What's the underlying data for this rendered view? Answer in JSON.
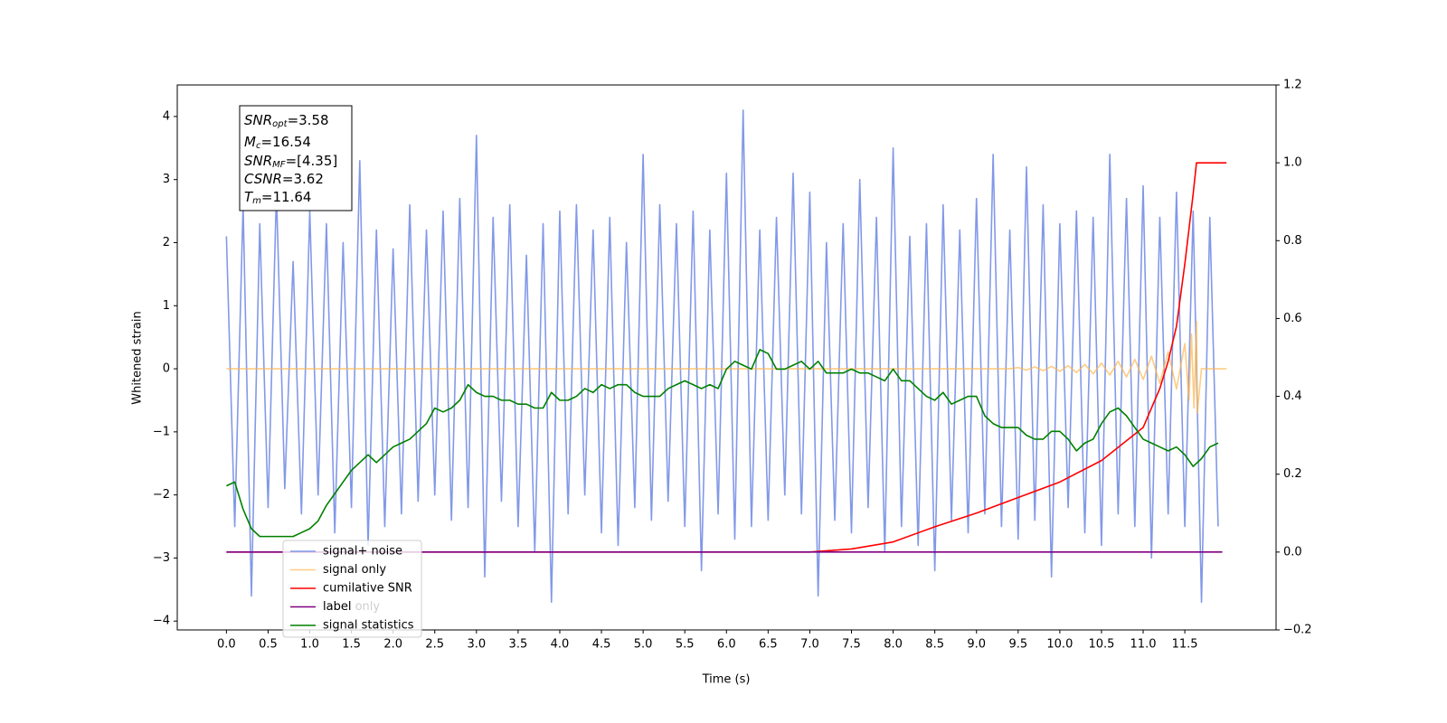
{
  "chart_data": {
    "type": "line",
    "xlabel": "Time (s)",
    "ylabel": "Whitened strain",
    "xlim": [
      -0.59,
      12.595
    ],
    "ylim": [
      -4.14,
      4.5
    ],
    "y2lim": [
      -0.2,
      1.2
    ],
    "xticks": [
      {
        "value": 0,
        "label": "0.0"
      },
      0.5,
      {
        "value": 1,
        "label": "1.0"
      },
      1.5,
      {
        "value": 2,
        "label": "2.0"
      },
      2.5,
      {
        "value": 3,
        "label": "3.0"
      },
      3.5,
      {
        "value": 4,
        "label": "4.0"
      },
      4.5,
      {
        "value": 5,
        "label": "5.0"
      },
      5.5,
      {
        "value": 6,
        "label": "6.0"
      },
      6.5,
      {
        "value": 7,
        "label": "7.0"
      },
      7.5,
      {
        "value": 8,
        "label": "8.0"
      },
      8.5,
      {
        "value": 9,
        "label": "9.0"
      },
      9.5,
      {
        "value": 10,
        "label": "10.0"
      },
      10.5,
      {
        "value": 11,
        "label": "11.0"
      },
      11.5
    ],
    "yticks": [
      {
        "value": -4,
        "label": "−4"
      },
      {
        "value": -3,
        "label": "−3"
      },
      {
        "value": -2,
        "label": "−2"
      },
      {
        "value": -1,
        "label": "−1"
      },
      0,
      1,
      2,
      3,
      4
    ],
    "y2ticks": [
      {
        "value": -0.2,
        "label": "−0.2"
      },
      {
        "value": 0,
        "label": "0.0"
      },
      0.2,
      0.4,
      0.6,
      0.8,
      {
        "value": 1,
        "label": "1.0"
      },
      1.2
    ],
    "legend_loc": "lower left",
    "legend_hidden_text": "label only",
    "annotation": [
      {
        "main": "SNR",
        "sub": "opt",
        "text": "=3.58"
      },
      {
        "main": "M",
        "sub": "c",
        "text": "=16.54"
      },
      {
        "main": "SNR",
        "sub": "MF",
        "text": "=[4.35]"
      },
      {
        "main": "CSNR",
        "text": "=3.62"
      },
      {
        "main": "T",
        "sub": "m",
        "text": "=11.64"
      }
    ],
    "x": [
      0,
      0.1,
      0.2,
      0.3,
      0.4,
      0.5,
      0.6,
      0.7,
      0.8,
      0.9,
      1.0,
      1.1,
      1.2,
      1.3,
      1.4,
      1.5,
      1.6,
      1.7,
      1.8,
      1.9,
      2.0,
      2.1,
      2.2,
      2.3,
      2.4,
      2.5,
      2.6,
      2.7,
      2.8,
      2.9,
      3.0,
      3.1,
      3.2,
      3.3,
      3.4,
      3.5,
      3.6,
      3.7,
      3.8,
      3.9,
      4.0,
      4.1,
      4.2,
      4.3,
      4.4,
      4.5,
      4.6,
      4.7,
      4.8,
      4.9,
      5.0,
      5.1,
      5.2,
      5.3,
      5.4,
      5.5,
      5.6,
      5.7,
      5.8,
      5.9,
      6.0,
      6.1,
      6.2,
      6.3,
      6.4,
      6.5,
      6.6,
      6.7,
      6.8,
      6.9,
      7.0,
      7.1,
      7.2,
      7.3,
      7.4,
      7.5,
      7.6,
      7.7,
      7.8,
      7.9,
      8.0,
      8.1,
      8.2,
      8.3,
      8.4,
      8.5,
      8.6,
      8.7,
      8.8,
      8.9,
      9.0,
      9.1,
      9.2,
      9.3,
      9.4,
      9.5,
      9.6,
      9.7,
      9.8,
      9.9,
      10.0,
      10.1,
      10.2,
      10.3,
      10.4,
      10.5,
      10.6,
      10.7,
      10.8,
      10.9,
      11.0,
      11.1,
      11.2,
      11.3,
      11.4,
      11.5,
      11.6,
      11.7,
      11.8,
      11.9
    ],
    "series": [
      {
        "name": "signal+ noise",
        "color": "#7b93e6",
        "values": [
          2.1,
          -2.5,
          2.6,
          -3.6,
          2.3,
          -2.2,
          2.8,
          -1.9,
          1.7,
          -2.3,
          2.5,
          -2.0,
          2.3,
          -2.6,
          2.0,
          -2.2,
          3.3,
          -2.8,
          2.2,
          -2.5,
          1.9,
          -2.3,
          2.6,
          -2.1,
          2.2,
          -2.0,
          2.5,
          -2.4,
          2.7,
          -2.2,
          3.7,
          -3.3,
          2.4,
          -2.1,
          2.6,
          -2.5,
          1.8,
          -2.9,
          2.3,
          -3.7,
          2.5,
          -2.3,
          2.6,
          -2.0,
          2.2,
          -2.6,
          2.4,
          -2.8,
          2.0,
          -2.2,
          3.4,
          -2.4,
          2.6,
          -2.1,
          2.3,
          -2.5,
          2.5,
          -3.2,
          2.2,
          -2.3,
          3.1,
          -2.7,
          4.1,
          -2.5,
          2.2,
          -2.4,
          2.4,
          -2.0,
          3.1,
          -2.3,
          2.8,
          -3.6,
          2.0,
          -2.4,
          2.3,
          -2.6,
          3.0,
          -2.2,
          2.4,
          -2.9,
          3.5,
          -2.5,
          2.1,
          -2.8,
          2.3,
          -3.2,
          2.6,
          -2.4,
          2.2,
          -2.6,
          2.7,
          -2.3,
          3.4,
          -2.5,
          2.2,
          -2.7,
          3.2,
          -2.4,
          2.6,
          -3.3,
          2.3,
          -2.2,
          2.5,
          -2.6,
          2.4,
          -2.8,
          3.4,
          -2.3,
          2.7,
          -2.5,
          2.9,
          -3.0,
          2.4,
          -2.3,
          2.8,
          -2.5,
          2.5,
          -3.7,
          2.4,
          -2.5
        ]
      },
      {
        "name": "signal only",
        "color": "#ffb74d",
        "x": [
          0,
          9.4,
          9.5,
          9.6,
          9.7,
          9.8,
          9.9,
          10.0,
          10.1,
          10.2,
          10.3,
          10.4,
          10.5,
          10.6,
          10.7,
          10.8,
          10.9,
          11.0,
          11.1,
          11.2,
          11.3,
          11.4,
          11.5,
          11.55,
          11.58,
          11.61,
          11.64,
          11.65,
          11.7,
          12.0
        ],
        "values": [
          0,
          0,
          0.02,
          -0.02,
          0.03,
          -0.03,
          0.04,
          -0.04,
          0.05,
          -0.06,
          0.07,
          -0.08,
          0.09,
          -0.1,
          0.12,
          -0.13,
          0.15,
          -0.17,
          0.2,
          -0.23,
          0.27,
          -0.32,
          0.4,
          -0.5,
          0.55,
          -0.62,
          0.75,
          -0.7,
          0,
          0
        ]
      },
      {
        "name": "cumilative SNR",
        "color": "#ff0000",
        "axis": "y2",
        "x": [
          0,
          7.0,
          7.5,
          8.0,
          8.5,
          9.0,
          9.5,
          10.0,
          10.5,
          11.0,
          11.2,
          11.3,
          11.4,
          11.5,
          11.6,
          11.64,
          12.0
        ],
        "values": [
          0,
          0,
          0.008,
          0.026,
          0.065,
          0.1,
          0.14,
          0.18,
          0.235,
          0.32,
          0.42,
          0.49,
          0.58,
          0.74,
          0.92,
          1.0,
          1.0
        ]
      },
      {
        "name": "label",
        "color": "#800080",
        "axis": "y2",
        "x": [
          0,
          11.95
        ],
        "values": [
          0,
          0
        ]
      },
      {
        "name": "signal statistics",
        "color": "#008000",
        "axis": "y2",
        "values": [
          0.17,
          0.18,
          0.11,
          0.06,
          0.04,
          0.04,
          0.04,
          0.04,
          0.04,
          0.05,
          0.06,
          0.08,
          0.12,
          0.15,
          0.18,
          0.21,
          0.23,
          0.25,
          0.23,
          0.25,
          0.27,
          0.28,
          0.29,
          0.31,
          0.33,
          0.37,
          0.36,
          0.37,
          0.39,
          0.43,
          0.41,
          0.4,
          0.4,
          0.39,
          0.39,
          0.38,
          0.38,
          0.37,
          0.37,
          0.41,
          0.39,
          0.39,
          0.4,
          0.42,
          0.41,
          0.43,
          0.42,
          0.43,
          0.43,
          0.41,
          0.4,
          0.4,
          0.4,
          0.42,
          0.43,
          0.44,
          0.43,
          0.42,
          0.43,
          0.42,
          0.47,
          0.49,
          0.48,
          0.47,
          0.52,
          0.51,
          0.47,
          0.47,
          0.48,
          0.49,
          0.47,
          0.49,
          0.46,
          0.46,
          0.46,
          0.47,
          0.46,
          0.46,
          0.45,
          0.44,
          0.47,
          0.44,
          0.44,
          0.42,
          0.4,
          0.39,
          0.41,
          0.38,
          0.39,
          0.4,
          0.4,
          0.35,
          0.33,
          0.32,
          0.32,
          0.32,
          0.3,
          0.29,
          0.29,
          0.31,
          0.31,
          0.29,
          0.26,
          0.28,
          0.29,
          0.33,
          0.36,
          0.37,
          0.35,
          0.32,
          0.29,
          0.28,
          0.27,
          0.26,
          0.27,
          0.25,
          0.22,
          0.24,
          0.27,
          0.28
        ]
      }
    ]
  }
}
